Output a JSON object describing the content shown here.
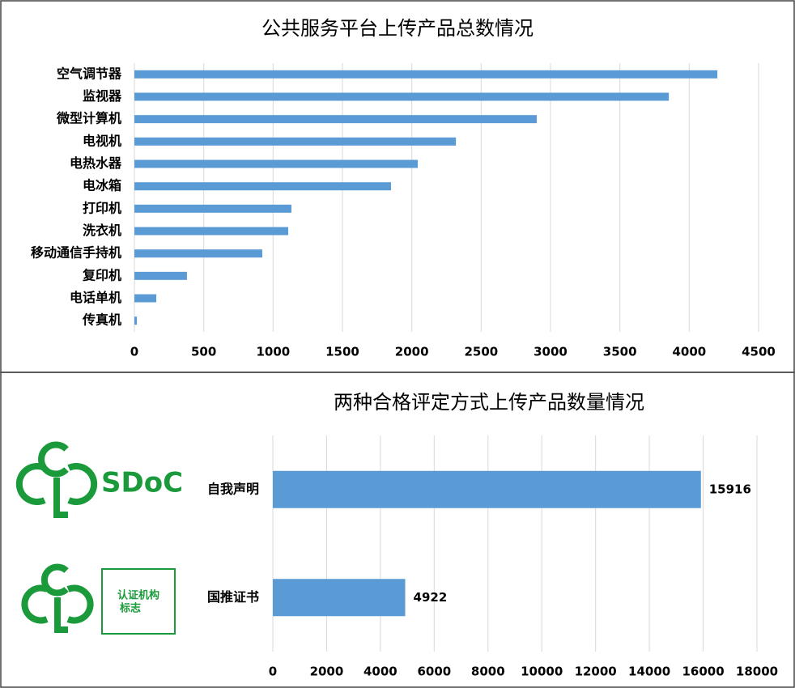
{
  "chart_data": [
    {
      "type": "bar",
      "orientation": "horizontal",
      "title": "公共服务平台上传产品总数情况",
      "categories": [
        "空气调节器",
        "监视器",
        "微型计算机",
        "电视机",
        "电热水器",
        "电冰箱",
        "打印机",
        "洗衣机",
        "移动通信手持机",
        "复印机",
        "电话单机",
        "传真机"
      ],
      "values": [
        4203,
        3853,
        2901,
        2318,
        2043,
        1850,
        1132,
        1109,
        922,
        379,
        158,
        18
      ],
      "color": "#5b9bd5",
      "xlim": [
        0,
        4500
      ],
      "xticks": [
        0,
        500,
        1000,
        1500,
        2000,
        2500,
        3000,
        3500,
        4000,
        4500
      ],
      "grid": true,
      "data_labels": false
    },
    {
      "type": "bar",
      "orientation": "horizontal",
      "title": "两种合格评定方式上传产品数量情况",
      "categories": [
        "自我声明",
        "国推证书"
      ],
      "values": [
        15916,
        4922
      ],
      "color": "#5b9bd5",
      "xlim": [
        0,
        18000
      ],
      "xticks": [
        0,
        2000,
        4000,
        6000,
        8000,
        10000,
        12000,
        14000,
        16000,
        18000
      ],
      "grid": true,
      "data_labels": true
    }
  ],
  "logos": {
    "sdoc": "SDoC",
    "mark_lines": [
      "认证机构",
      "标志"
    ]
  }
}
